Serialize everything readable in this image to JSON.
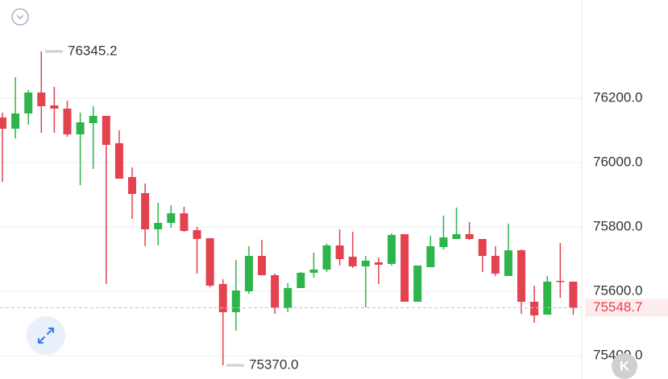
{
  "chart_data": {
    "type": "candlestick",
    "up_color": "#2db54b",
    "down_color": "#e3424f",
    "open": [
      76140,
      76105,
      76152.5,
      76217.5,
      76177.5,
      76167.5,
      76087.5,
      76122.5,
      76145,
      76060,
      75955,
      75905,
      75792.5,
      75812.5,
      75842.5,
      75790,
      75765,
      75622.5,
      75535,
      75600,
      75710,
      75650,
      75547.5,
      75610,
      75657.5,
      75667.5,
      75742.5,
      75707.5,
      75677.5,
      75690,
      75685,
      75777.5,
      75567.5,
      75675,
      75737.5,
      75762.5,
      75777.5,
      75762.5,
      75710,
      75647.5,
      75727.5,
      75567.5,
      75527.5,
      75632.5,
      75630
    ],
    "close": [
      76105,
      76152.5,
      76217.5,
      76175,
      76167.5,
      76087.5,
      76125,
      76145,
      76055,
      75950,
      75902.5,
      75792.5,
      75812.5,
      75842.5,
      75787.5,
      75762.5,
      75617.5,
      75535,
      75602.5,
      75710,
      75650,
      75550,
      75610,
      75657.5,
      75667.5,
      75742.5,
      75700,
      75677.5,
      75695,
      75682.5,
      75775,
      75567.5,
      75680,
      75740,
      75767.5,
      75777.5,
      75762.5,
      75710,
      75655,
      75727.5,
      75567.5,
      75525,
      75630,
      75630,
      75548.7
    ],
    "high": [
      76155,
      76265,
      76225,
      76345.2,
      76235,
      76192.5,
      76155,
      76175,
      76145,
      76100,
      75985,
      75935,
      75875,
      75867.5,
      75862.5,
      75800,
      75765,
      75637.5,
      75697.5,
      75740,
      75760,
      75655,
      75625,
      75660,
      75720,
      75747.5,
      75792.5,
      75785,
      75710,
      75705,
      75780,
      75777.5,
      75680,
      75772.5,
      75835,
      75860,
      75815,
      75762.5,
      75740,
      75810,
      75730,
      75617.5,
      75647.5,
      75750,
      75630
    ],
    "low": [
      75940,
      76075,
      76117.5,
      76092.5,
      76092.5,
      76080,
      75930,
      75980,
      75622.5,
      75950,
      75825,
      75740,
      75742.5,
      75797.5,
      75785,
      75655,
      75612.5,
      75370,
      75477.5,
      75592.5,
      75650,
      75530,
      75535,
      75610,
      75642.5,
      75660,
      75680,
      75672.5,
      75550,
      75622.5,
      75680,
      75567.5,
      75567.5,
      75675,
      75730,
      75762.5,
      75760,
      75660,
      75647.5,
      75647.5,
      75530,
      75502.5,
      75527.5,
      75580,
      75527.5
    ],
    "ylim": [
      75327.5,
      76505
    ],
    "yticks": [
      {
        "value": 75400,
        "label": "75400.0"
      },
      {
        "value": 75600,
        "label": "75600.0"
      },
      {
        "value": 75800,
        "label": "75800.0"
      },
      {
        "value": 76000,
        "label": "76000.0"
      },
      {
        "value": 76200,
        "label": "76200.0"
      }
    ],
    "grid": true,
    "max_label": 76345.2,
    "min_label": {
      "value": 75370,
      "label": "75370.0"
    },
    "last_price": 75548.7,
    "logo_text": "K"
  }
}
